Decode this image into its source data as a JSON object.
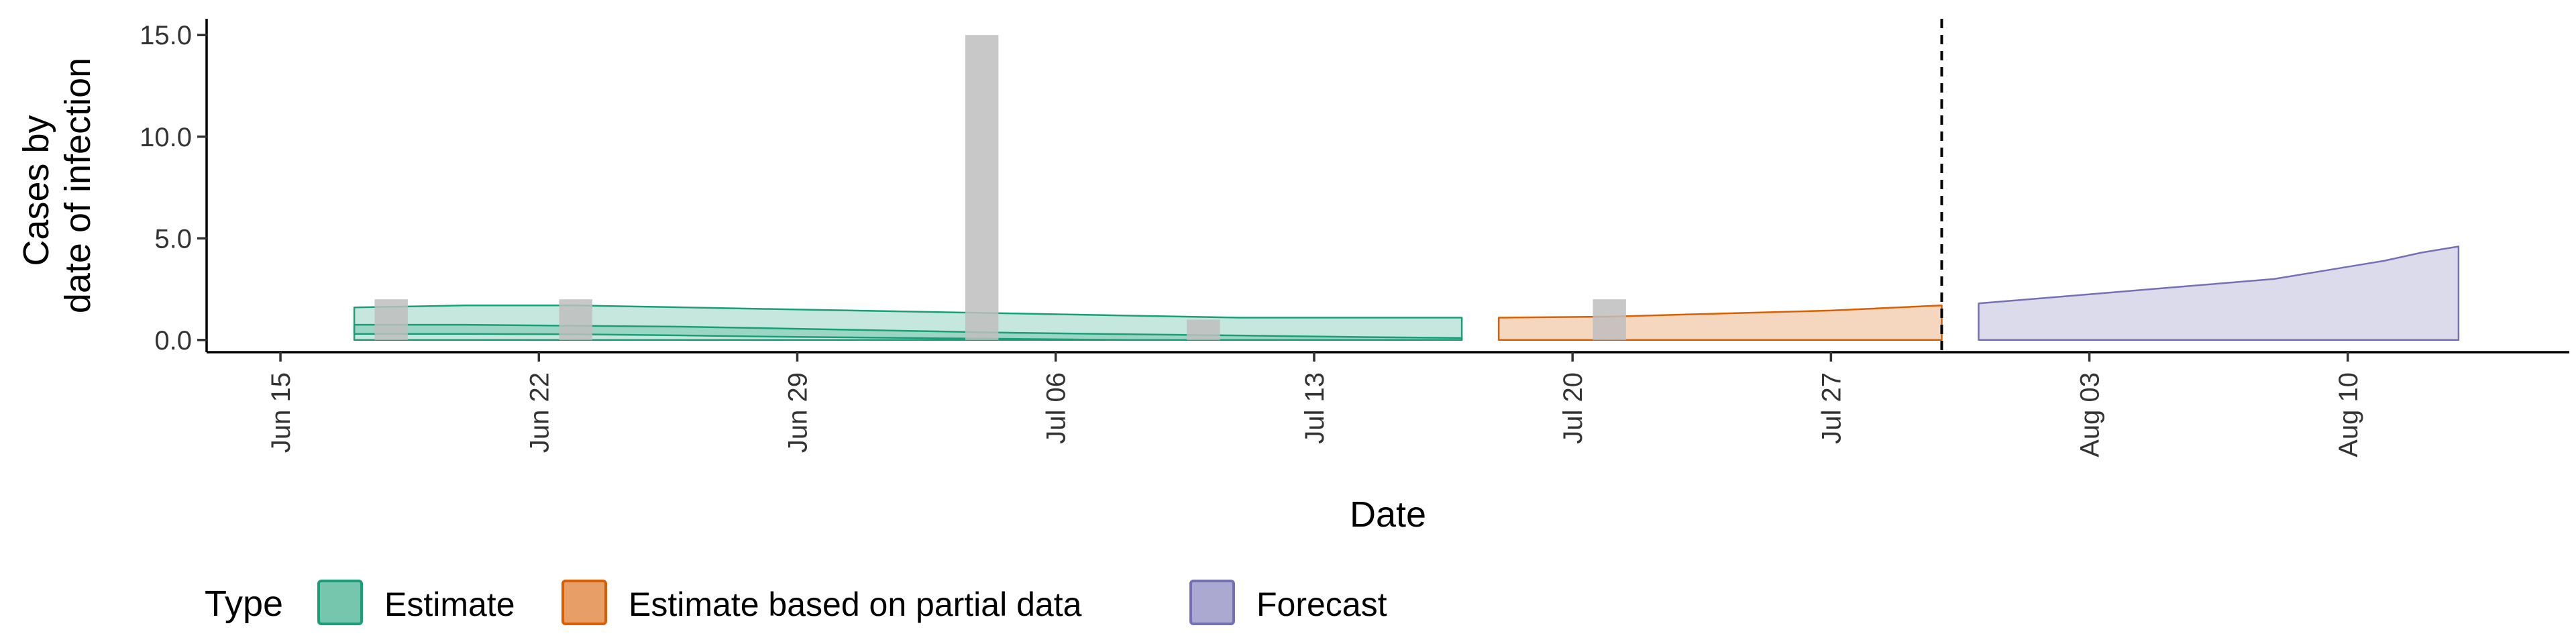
{
  "chart_data": {
    "type": "area",
    "xlabel": "Date",
    "ylabel_lines": [
      "Cases by",
      "date of infection"
    ],
    "x_range": [
      "2020-06-13",
      "2020-08-16"
    ],
    "ylim": [
      -0.6,
      15.8
    ],
    "x_ticks": [
      {
        "date": "2020-06-15",
        "label": "Jun 15"
      },
      {
        "date": "2020-06-22",
        "label": "Jun 22"
      },
      {
        "date": "2020-06-29",
        "label": "Jun 29"
      },
      {
        "date": "2020-07-06",
        "label": "Jul 06"
      },
      {
        "date": "2020-07-13",
        "label": "Jul 13"
      },
      {
        "date": "2020-07-20",
        "label": "Jul 20"
      },
      {
        "date": "2020-07-27",
        "label": "Jul 27"
      },
      {
        "date": "2020-08-03",
        "label": "Aug 03"
      },
      {
        "date": "2020-08-10",
        "label": "Aug 10"
      }
    ],
    "y_ticks": [
      {
        "value": 0,
        "label": "0.0"
      },
      {
        "value": 5,
        "label": "5.0"
      },
      {
        "value": 10,
        "label": "10.0"
      },
      {
        "value": 15,
        "label": "15.0"
      }
    ],
    "grid": false,
    "forecast_date": "2020-07-30",
    "reported_cases": [
      {
        "date": "2020-06-18",
        "value": 2
      },
      {
        "date": "2020-06-23",
        "value": 2
      },
      {
        "date": "2020-07-04",
        "value": 15
      },
      {
        "date": "2020-07-10",
        "value": 1
      },
      {
        "date": "2020-07-21",
        "value": 2
      }
    ],
    "series": [
      {
        "name": "Estimate",
        "color": "#1b9e77",
        "bands": [
          {
            "dates": [
              "2020-06-17",
              "2020-06-20",
              "2020-06-23",
              "2020-06-26",
              "2020-06-29",
              "2020-07-02",
              "2020-07-05",
              "2020-07-08",
              "2020-07-11",
              "2020-07-14",
              "2020-07-17"
            ],
            "upper": [
              1.6,
              1.7,
              1.7,
              1.6,
              1.5,
              1.4,
              1.3,
              1.2,
              1.1,
              1.1,
              1.1
            ],
            "lower": [
              0.0,
              0.0,
              0.0,
              0.0,
              0.0,
              0.0,
              0.0,
              0.0,
              0.0,
              0.0,
              0.0
            ]
          },
          {
            "dates": [
              "2020-06-17",
              "2020-06-20",
              "2020-06-23",
              "2020-06-26",
              "2020-06-29",
              "2020-07-02",
              "2020-07-05",
              "2020-07-08",
              "2020-07-11",
              "2020-07-14",
              "2020-07-17"
            ],
            "upper": [
              0.75,
              0.75,
              0.7,
              0.65,
              0.55,
              0.45,
              0.35,
              0.28,
              0.22,
              0.15,
              0.1
            ],
            "lower": [
              0.3,
              0.3,
              0.28,
              0.22,
              0.15,
              0.1,
              0.05,
              0.0,
              0.0,
              0.0,
              0.0
            ]
          }
        ]
      },
      {
        "name": "Estimate based on partial data",
        "color": "#d95f02",
        "bands": [
          {
            "dates": [
              "2020-07-18",
              "2020-07-21",
              "2020-07-24",
              "2020-07-27",
              "2020-07-30"
            ],
            "upper": [
              1.1,
              1.15,
              1.3,
              1.45,
              1.7
            ],
            "lower": [
              0.0,
              0.0,
              0.0,
              0.0,
              0.0
            ]
          }
        ]
      },
      {
        "name": "Forecast",
        "color": "#7570b3",
        "bands": [
          {
            "dates": [
              "2020-07-31",
              "2020-08-02",
              "2020-08-04",
              "2020-08-06",
              "2020-08-08",
              "2020-08-09",
              "2020-08-10",
              "2020-08-11",
              "2020-08-12",
              "2020-08-13"
            ],
            "upper": [
              1.8,
              2.1,
              2.4,
              2.7,
              3.0,
              3.3,
              3.6,
              3.9,
              4.3,
              4.6
            ],
            "lower": [
              0.0,
              0.0,
              0.0,
              0.0,
              0.0,
              0.0,
              0.0,
              0.0,
              0.0,
              0.0
            ]
          }
        ]
      }
    ],
    "legend": {
      "title": "Type",
      "position": "bottom",
      "entries": [
        "Estimate",
        "Estimate based on partial data",
        "Forecast"
      ]
    },
    "bar_color": "#bebebe"
  }
}
